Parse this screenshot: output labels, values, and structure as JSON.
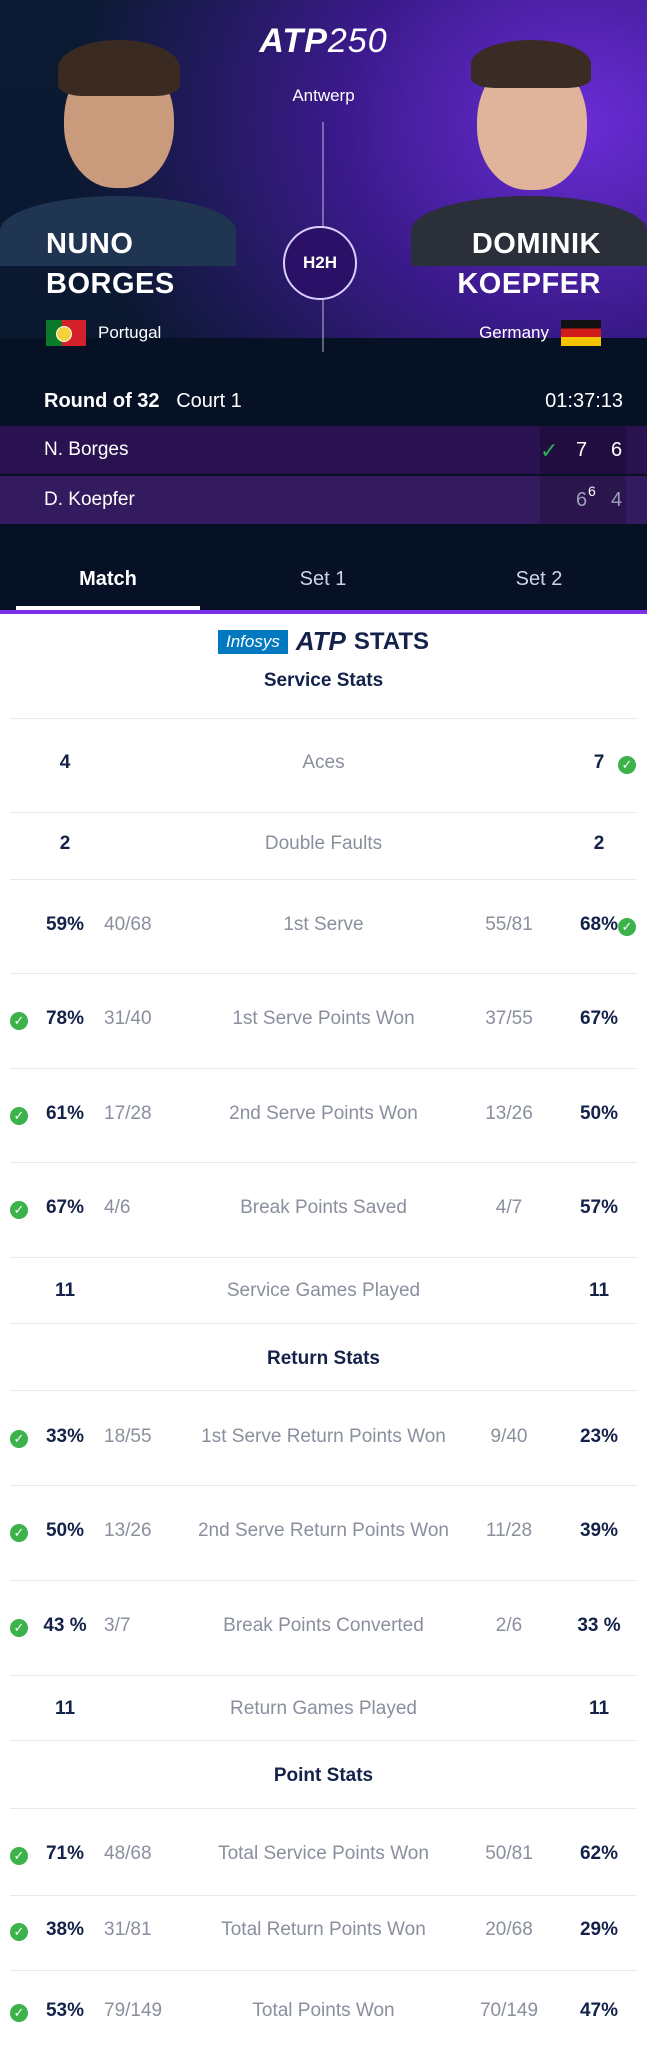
{
  "header": {
    "logo_brand": "ATP",
    "logo_num": "250",
    "tournament": "Antwerp",
    "h2h_label": "H2H"
  },
  "players": {
    "left": {
      "first": "NUNO",
      "last": "BORGES",
      "country": "Portugal",
      "flag_icon": "portugal-flag-icon"
    },
    "right": {
      "first": "DOMINIK",
      "last": "KOEPFER",
      "country": "Germany",
      "flag_icon": "germany-flag-icon"
    }
  },
  "match": {
    "round": "Round of 32",
    "court": "Court 1",
    "duration": "01:37:13",
    "rows": [
      {
        "name": "N. Borges",
        "winner": true,
        "set1": "7",
        "set2": "6",
        "set1_tb": ""
      },
      {
        "name": "D. Koepfer",
        "winner": false,
        "set1": "6",
        "set1_tb": "6",
        "set2": "4"
      }
    ]
  },
  "tabs": [
    "Match",
    "Set 1",
    "Set 2"
  ],
  "stats_logo": {
    "infosys": "Infosys",
    "atp": "ATP",
    "stats": "STATS"
  },
  "sections": {
    "service": "Service Stats",
    "return": "Return Stats",
    "point": "Point Stats"
  },
  "service_stats": [
    {
      "label": "Aces",
      "left": "4",
      "left_ratio": "",
      "right": "7",
      "right_ratio": "",
      "winner": "right"
    },
    {
      "label": "Double Faults",
      "left": "2",
      "left_ratio": "",
      "right": "2",
      "right_ratio": "",
      "winner": ""
    },
    {
      "label": "1st Serve",
      "left": "59%",
      "left_ratio": "40/68",
      "right": "68%",
      "right_ratio": "55/81",
      "winner": "right"
    },
    {
      "label": "1st Serve Points Won",
      "left": "78%",
      "left_ratio": "31/40",
      "right": "67%",
      "right_ratio": "37/55",
      "winner": "left"
    },
    {
      "label": "2nd Serve Points Won",
      "left": "61%",
      "left_ratio": "17/28",
      "right": "50%",
      "right_ratio": "13/26",
      "winner": "left"
    },
    {
      "label": "Break Points Saved",
      "left": "67%",
      "left_ratio": "4/6",
      "right": "57%",
      "right_ratio": "4/7",
      "winner": "left"
    },
    {
      "label": "Service Games Played",
      "left": "11",
      "left_ratio": "",
      "right": "11",
      "right_ratio": "",
      "winner": ""
    }
  ],
  "return_stats": [
    {
      "label": "1st Serve Return Points Won",
      "left": "33%",
      "left_ratio": "18/55",
      "right": "23%",
      "right_ratio": "9/40",
      "winner": "left"
    },
    {
      "label": "2nd Serve Return Points Won",
      "left": "50%",
      "left_ratio": "13/26",
      "right": "39%",
      "right_ratio": "11/28",
      "winner": "left"
    },
    {
      "label": "Break Points Converted",
      "left": "43 %",
      "left_ratio": "3/7",
      "right": "33 %",
      "right_ratio": "2/6",
      "winner": "left"
    },
    {
      "label": "Return Games Played",
      "left": "11",
      "left_ratio": "",
      "right": "11",
      "right_ratio": "",
      "winner": ""
    }
  ],
  "point_stats": [
    {
      "label": "Total Service Points Won",
      "left": "71%",
      "left_ratio": "48/68",
      "right": "62%",
      "right_ratio": "50/81",
      "winner": "left"
    },
    {
      "label": "Total Return Points Won",
      "left": "38%",
      "left_ratio": "31/81",
      "right": "29%",
      "right_ratio": "20/68",
      "winner": "left"
    },
    {
      "label": "Total Points Won",
      "left": "53%",
      "left_ratio": "79/149",
      "right": "47%",
      "right_ratio": "70/149",
      "winner": "left"
    }
  ],
  "colors": {
    "accent": "#7b2fe6",
    "winner_check": "#3cb34a",
    "navy": "#14224a"
  }
}
